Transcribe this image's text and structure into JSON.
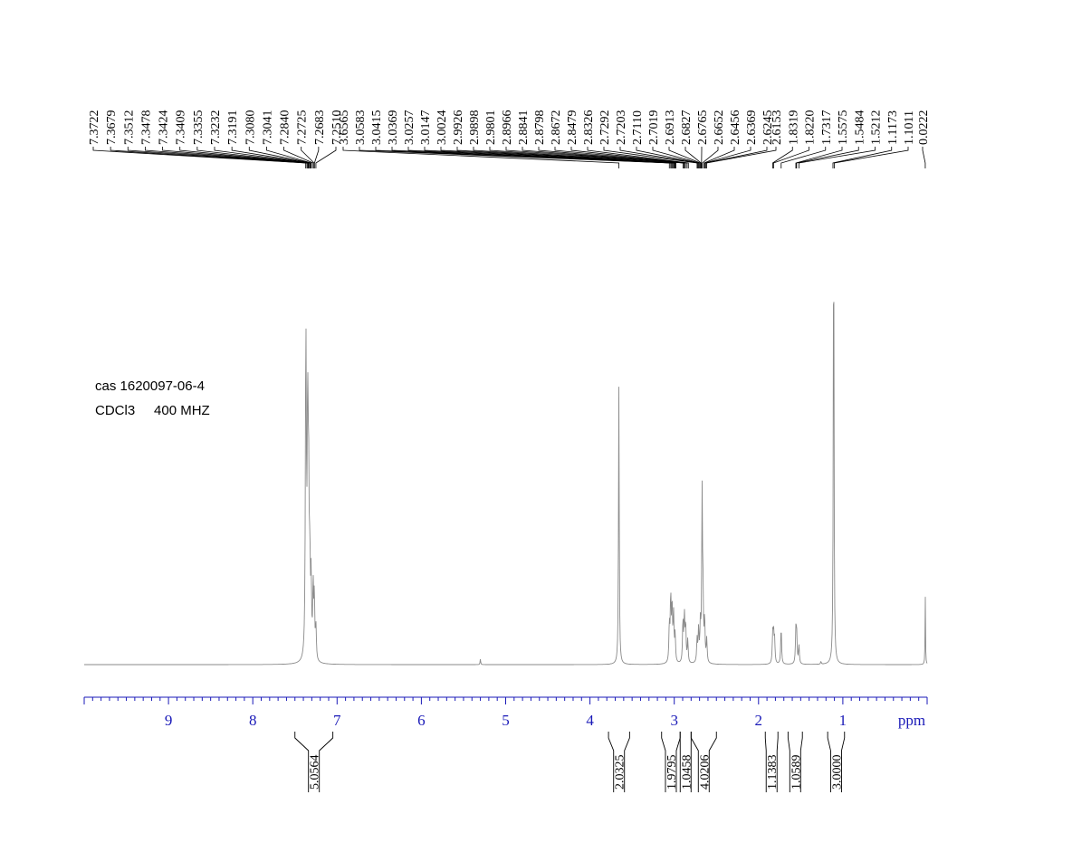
{
  "annotations": {
    "sample": "cas 1620097-06-4",
    "conditions": "CDCl3     400 MHZ"
  },
  "chart_data": {
    "type": "line",
    "x_axis": {
      "unit_label": "ppm",
      "range": [
        10.0,
        0.0
      ],
      "ticks": [
        9,
        8,
        7,
        6,
        5,
        4,
        3,
        2,
        1
      ]
    },
    "peak_labels": [
      "7.3722",
      "7.3679",
      "7.3512",
      "7.3478",
      "7.3424",
      "7.3409",
      "7.3355",
      "7.3232",
      "7.3191",
      "7.3080",
      "7.3041",
      "7.2840",
      "7.2725",
      "7.2683",
      "7.2510",
      "3.6565",
      "3.0583",
      "3.0415",
      "3.0369",
      "3.0257",
      "3.0147",
      "3.0024",
      "2.9926",
      "2.9898",
      "2.9801",
      "2.8966",
      "2.8841",
      "2.8798",
      "2.8672",
      "2.8479",
      "2.8326",
      "2.7292",
      "2.7203",
      "2.7110",
      "2.7019",
      "2.6913",
      "2.6827",
      "2.6765",
      "2.6652",
      "2.6456",
      "2.6369",
      "2.6245",
      "2.6153",
      "1.8319",
      "1.8220",
      "1.7317",
      "1.5575",
      "1.5484",
      "1.5212",
      "1.1173",
      "1.1011",
      "0.0222"
    ],
    "integrals": [
      {
        "value": "5.0564",
        "from": 7.5,
        "to": 7.05
      },
      {
        "value": "2.0325",
        "from": 3.78,
        "to": 3.53
      },
      {
        "value": "1.9795",
        "from": 3.15,
        "to": 2.93
      },
      {
        "value": "1.0458",
        "from": 2.93,
        "to": 2.8
      },
      {
        "value": "4.0206",
        "from": 2.8,
        "to": 2.5
      },
      {
        "value": "1.1383",
        "from": 1.92,
        "to": 1.77
      },
      {
        "value": "1.0589",
        "from": 1.65,
        "to": 1.48
      },
      {
        "value": "3.0000",
        "from": 1.18,
        "to": 0.98
      }
    ],
    "peaks": [
      {
        "ppm": 7.372,
        "h": 0.4,
        "w": 0.006
      },
      {
        "ppm": 7.368,
        "h": 0.36,
        "w": 0.006
      },
      {
        "ppm": 7.351,
        "h": 0.33,
        "w": 0.006
      },
      {
        "ppm": 7.345,
        "h": 0.3,
        "w": 0.006
      },
      {
        "ppm": 7.336,
        "h": 0.28,
        "w": 0.006
      },
      {
        "ppm": 7.323,
        "h": 0.18,
        "w": 0.006
      },
      {
        "ppm": 7.308,
        "h": 0.16,
        "w": 0.006
      },
      {
        "ppm": 7.284,
        "h": 0.15,
        "w": 0.006
      },
      {
        "ppm": 7.27,
        "h": 0.13,
        "w": 0.006
      },
      {
        "ppm": 7.251,
        "h": 0.07,
        "w": 0.006
      },
      {
        "ppm": 5.3,
        "h": 0.012,
        "w": 0.004
      },
      {
        "ppm": 3.657,
        "h": 0.6,
        "w": 0.005
      },
      {
        "ppm": 3.058,
        "h": 0.08,
        "w": 0.006
      },
      {
        "ppm": 3.042,
        "h": 0.14,
        "w": 0.006
      },
      {
        "ppm": 3.026,
        "h": 0.12,
        "w": 0.006
      },
      {
        "ppm": 3.008,
        "h": 0.1,
        "w": 0.006
      },
      {
        "ppm": 2.99,
        "h": 0.06,
        "w": 0.006
      },
      {
        "ppm": 2.897,
        "h": 0.09,
        "w": 0.006
      },
      {
        "ppm": 2.88,
        "h": 0.1,
        "w": 0.006
      },
      {
        "ppm": 2.865,
        "h": 0.08,
        "w": 0.006
      },
      {
        "ppm": 2.84,
        "h": 0.05,
        "w": 0.006
      },
      {
        "ppm": 2.729,
        "h": 0.05,
        "w": 0.006
      },
      {
        "ppm": 2.711,
        "h": 0.07,
        "w": 0.006
      },
      {
        "ppm": 2.69,
        "h": 0.08,
        "w": 0.006
      },
      {
        "ppm": 2.67,
        "h": 0.35,
        "w": 0.005
      },
      {
        "ppm": 2.66,
        "h": 0.14,
        "w": 0.006
      },
      {
        "ppm": 2.64,
        "h": 0.09,
        "w": 0.006
      },
      {
        "ppm": 2.615,
        "h": 0.05,
        "w": 0.006
      },
      {
        "ppm": 1.832,
        "h": 0.06,
        "w": 0.006
      },
      {
        "ppm": 1.822,
        "h": 0.06,
        "w": 0.006
      },
      {
        "ppm": 1.81,
        "h": 0.05,
        "w": 0.006
      },
      {
        "ppm": 1.732,
        "h": 0.08,
        "w": 0.006
      },
      {
        "ppm": 1.557,
        "h": 0.07,
        "w": 0.006
      },
      {
        "ppm": 1.548,
        "h": 0.06,
        "w": 0.006
      },
      {
        "ppm": 1.521,
        "h": 0.04,
        "w": 0.006
      },
      {
        "ppm": 1.26,
        "h": 0.006,
        "w": 0.005
      },
      {
        "ppm": 1.109,
        "h": 1.0,
        "w": 0.005
      },
      {
        "ppm": 0.022,
        "h": 0.15,
        "w": 0.003
      }
    ]
  }
}
